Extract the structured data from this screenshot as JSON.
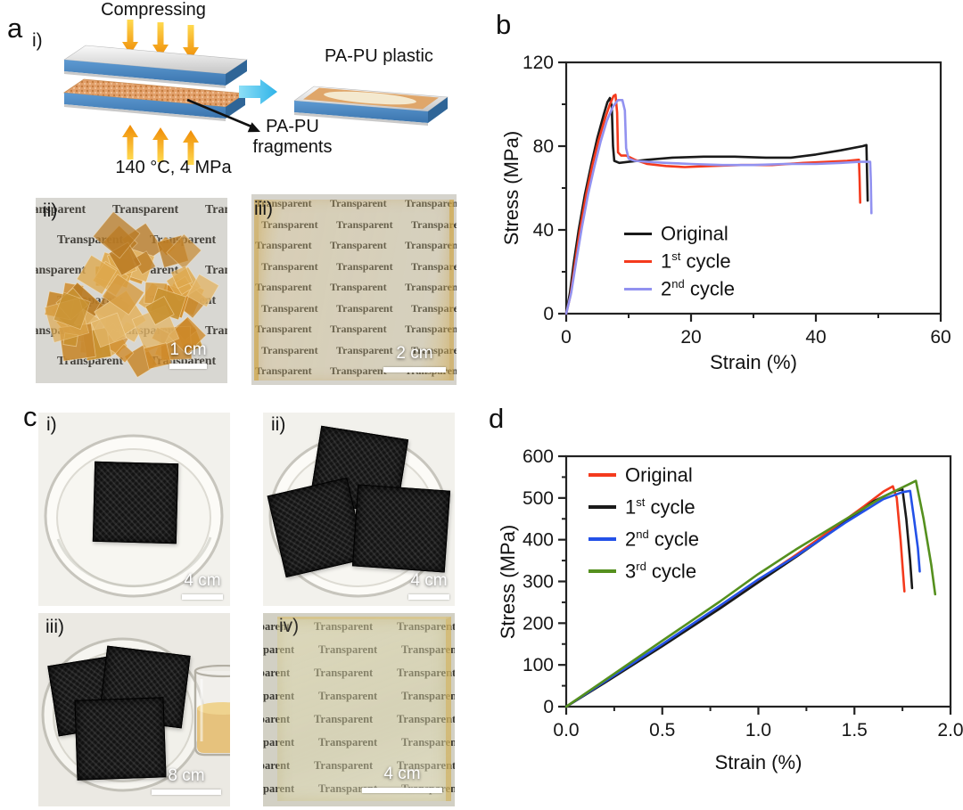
{
  "watermark": {
    "word": "Transparent"
  },
  "panels": {
    "a": {
      "label": "a",
      "sub_i": "i)",
      "sub_ii": "ii)",
      "sub_iii": "iii)",
      "schematic": {
        "compressing": "Compressing",
        "condition": "140 °C, 4 MPa",
        "fragments_line1": "PA-PU",
        "fragments_line2": "fragments",
        "product": "PA-PU plastic"
      },
      "scale_ii": "1 cm",
      "scale_iii": "2 cm"
    },
    "b": {
      "label": "b"
    },
    "c": {
      "label": "c",
      "sub_i": "i)",
      "sub_ii": "ii)",
      "sub_iii": "iii)",
      "sub_iv": "iv)",
      "scale_i": "4 cm",
      "scale_ii": "4 cm",
      "scale_iii": "8 cm",
      "scale_iv": "4 cm"
    },
    "d": {
      "label": "d"
    }
  },
  "chart_data": [
    {
      "type": "line",
      "title": "",
      "xlabel": "Strain (%)",
      "ylabel": "Stress (MPa)",
      "xlim": [
        0,
        60
      ],
      "ylim": [
        0,
        120
      ],
      "xticks": [
        0,
        20,
        40,
        60
      ],
      "xtick_labels": [
        "0",
        "20",
        "40",
        "60"
      ],
      "yticks": [
        0,
        40,
        80,
        120
      ],
      "ytick_labels": [
        "0",
        "40",
        "80",
        "120"
      ],
      "xminor": [
        10,
        30,
        50
      ],
      "yminor": [
        20,
        60,
        100
      ],
      "grid": false,
      "legend_position": "inside lower-left",
      "series": [
        {
          "name": "Original",
          "label_pre": "Original",
          "label_sup": "",
          "label_post": "",
          "color": "#1a1a1a",
          "points": [
            [
              0,
              0
            ],
            [
              0.6,
              10
            ],
            [
              1.2,
              24
            ],
            [
              2,
              40
            ],
            [
              3,
              57
            ],
            [
              4,
              71
            ],
            [
              5,
              84
            ],
            [
              6,
              95
            ],
            [
              6.6,
              101
            ],
            [
              7.0,
              103
            ],
            [
              7.3,
              99
            ],
            [
              7.5,
              80
            ],
            [
              7.7,
              73
            ],
            [
              8.5,
              72
            ],
            [
              10,
              72.5
            ],
            [
              13,
              73.5
            ],
            [
              17,
              74.5
            ],
            [
              22,
              75
            ],
            [
              27,
              75
            ],
            [
              32,
              74.5
            ],
            [
              36,
              74.5
            ],
            [
              40,
              76
            ],
            [
              44,
              78
            ],
            [
              47.5,
              80
            ],
            [
              48.1,
              80.5
            ],
            [
              48.2,
              67
            ],
            [
              48.3,
              54
            ]
          ]
        },
        {
          "name": "1st cycle",
          "label_pre": "1",
          "label_sup": "st",
          "label_post": " cycle",
          "color": "#f43a1d",
          "points": [
            [
              0,
              0
            ],
            [
              0.7,
              9
            ],
            [
              1.4,
              24
            ],
            [
              2.2,
              40
            ],
            [
              3.2,
              57
            ],
            [
              4.2,
              71
            ],
            [
              5.2,
              83
            ],
            [
              6.2,
              93
            ],
            [
              7.0,
              100
            ],
            [
              7.6,
              104
            ],
            [
              7.9,
              104.5
            ],
            [
              8.15,
              96
            ],
            [
              8.3,
              77
            ],
            [
              8.8,
              75.5
            ],
            [
              9.6,
              75.5
            ],
            [
              11,
              73.5
            ],
            [
              13,
              71.5
            ],
            [
              16,
              70.5
            ],
            [
              19,
              70
            ],
            [
              23,
              70.5
            ],
            [
              28,
              71
            ],
            [
              33,
              71
            ],
            [
              38,
              72
            ],
            [
              42,
              72.5
            ],
            [
              45,
              73
            ],
            [
              46.9,
              73.5
            ],
            [
              47.0,
              65
            ],
            [
              47.1,
              53
            ]
          ]
        },
        {
          "name": "2nd cycle",
          "label_pre": "2",
          "label_sup": "nd",
          "label_post": " cycle",
          "color": "#9292f0",
          "points": [
            [
              0,
              0
            ],
            [
              0.8,
              10
            ],
            [
              1.6,
              25
            ],
            [
              2.5,
              41
            ],
            [
              3.5,
              57
            ],
            [
              4.5,
              70
            ],
            [
              5.5,
              82
            ],
            [
              6.5,
              92
            ],
            [
              7.5,
              99
            ],
            [
              8.3,
              102
            ],
            [
              9.0,
              102
            ],
            [
              9.4,
              97
            ],
            [
              9.6,
              79
            ],
            [
              10.0,
              74
            ],
            [
              11,
              73
            ],
            [
              13,
              72.5
            ],
            [
              16,
              72
            ],
            [
              20,
              71.5
            ],
            [
              25,
              71
            ],
            [
              30,
              71
            ],
            [
              35,
              71.5
            ],
            [
              40,
              71.5
            ],
            [
              44,
              72
            ],
            [
              47,
              72.5
            ],
            [
              48.7,
              72.5
            ],
            [
              48.8,
              64
            ],
            [
              48.9,
              48
            ]
          ]
        }
      ]
    },
    {
      "type": "line",
      "title": "",
      "xlabel": "Strain (%)",
      "ylabel": "Stress (MPa)",
      "xlim": [
        0,
        2.0
      ],
      "ylim": [
        0,
        600
      ],
      "xticks": [
        0,
        0.5,
        1.0,
        1.5,
        2.0
      ],
      "xtick_labels": [
        "0.0",
        "0.5",
        "1.0",
        "1.5",
        "2.0"
      ],
      "yticks": [
        0,
        100,
        200,
        300,
        400,
        500,
        600
      ],
      "ytick_labels": [
        "0",
        "100",
        "200",
        "300",
        "400",
        "500",
        "600"
      ],
      "xminor": [
        0.25,
        0.75,
        1.25,
        1.75
      ],
      "yminor": [
        50,
        150,
        250,
        350,
        450,
        550
      ],
      "grid": false,
      "legend_position": "inside upper-left",
      "series": [
        {
          "name": "Original",
          "label_pre": "Original",
          "label_sup": "",
          "label_post": "",
          "color": "#f43a1d",
          "points": [
            [
              0,
              0
            ],
            [
              0.2,
              58
            ],
            [
              0.5,
              148
            ],
            [
              0.8,
              240
            ],
            [
              1.0,
              303
            ],
            [
              1.2,
              365
            ],
            [
              1.4,
              430
            ],
            [
              1.55,
              480
            ],
            [
              1.65,
              515
            ],
            [
              1.7,
              528
            ],
            [
              1.72,
              500
            ],
            [
              1.74,
              400
            ],
            [
              1.76,
              276
            ]
          ]
        },
        {
          "name": "1st cycle",
          "label_pre": "1",
          "label_sup": "st",
          "label_post": " cycle",
          "color": "#1a1a1a",
          "points": [
            [
              0,
              0
            ],
            [
              0.2,
              57
            ],
            [
              0.5,
              145
            ],
            [
              0.8,
              235
            ],
            [
              1.0,
              298
            ],
            [
              1.2,
              360
            ],
            [
              1.4,
              425
            ],
            [
              1.6,
              492
            ],
            [
              1.71,
              516
            ],
            [
              1.75,
              521
            ],
            [
              1.77,
              450
            ],
            [
              1.79,
              350
            ],
            [
              1.8,
              284
            ]
          ]
        },
        {
          "name": "2nd cycle",
          "label_pre": "2",
          "label_sup": "nd",
          "label_post": " cycle",
          "color": "#2351e8",
          "points": [
            [
              0,
              0
            ],
            [
              0.2,
              60
            ],
            [
              0.5,
              150
            ],
            [
              0.8,
              242
            ],
            [
              1.0,
              305
            ],
            [
              1.2,
              362
            ],
            [
              1.45,
              440
            ],
            [
              1.65,
              497
            ],
            [
              1.75,
              514
            ],
            [
              1.79,
              517
            ],
            [
              1.81,
              450
            ],
            [
              1.83,
              380
            ],
            [
              1.84,
              324
            ]
          ]
        },
        {
          "name": "3rd cycle",
          "label_pre": "3",
          "label_sup": "rd",
          "label_post": " cycle",
          "color": "#55901e",
          "points": [
            [
              0,
              0
            ],
            [
              0.2,
              63
            ],
            [
              0.5,
              158
            ],
            [
              0.8,
              252
            ],
            [
              1.0,
              318
            ],
            [
              1.2,
              378
            ],
            [
              1.45,
              448
            ],
            [
              1.65,
              503
            ],
            [
              1.78,
              532
            ],
            [
              1.82,
              541
            ],
            [
              1.86,
              450
            ],
            [
              1.9,
              340
            ],
            [
              1.92,
              269
            ]
          ]
        }
      ]
    }
  ]
}
